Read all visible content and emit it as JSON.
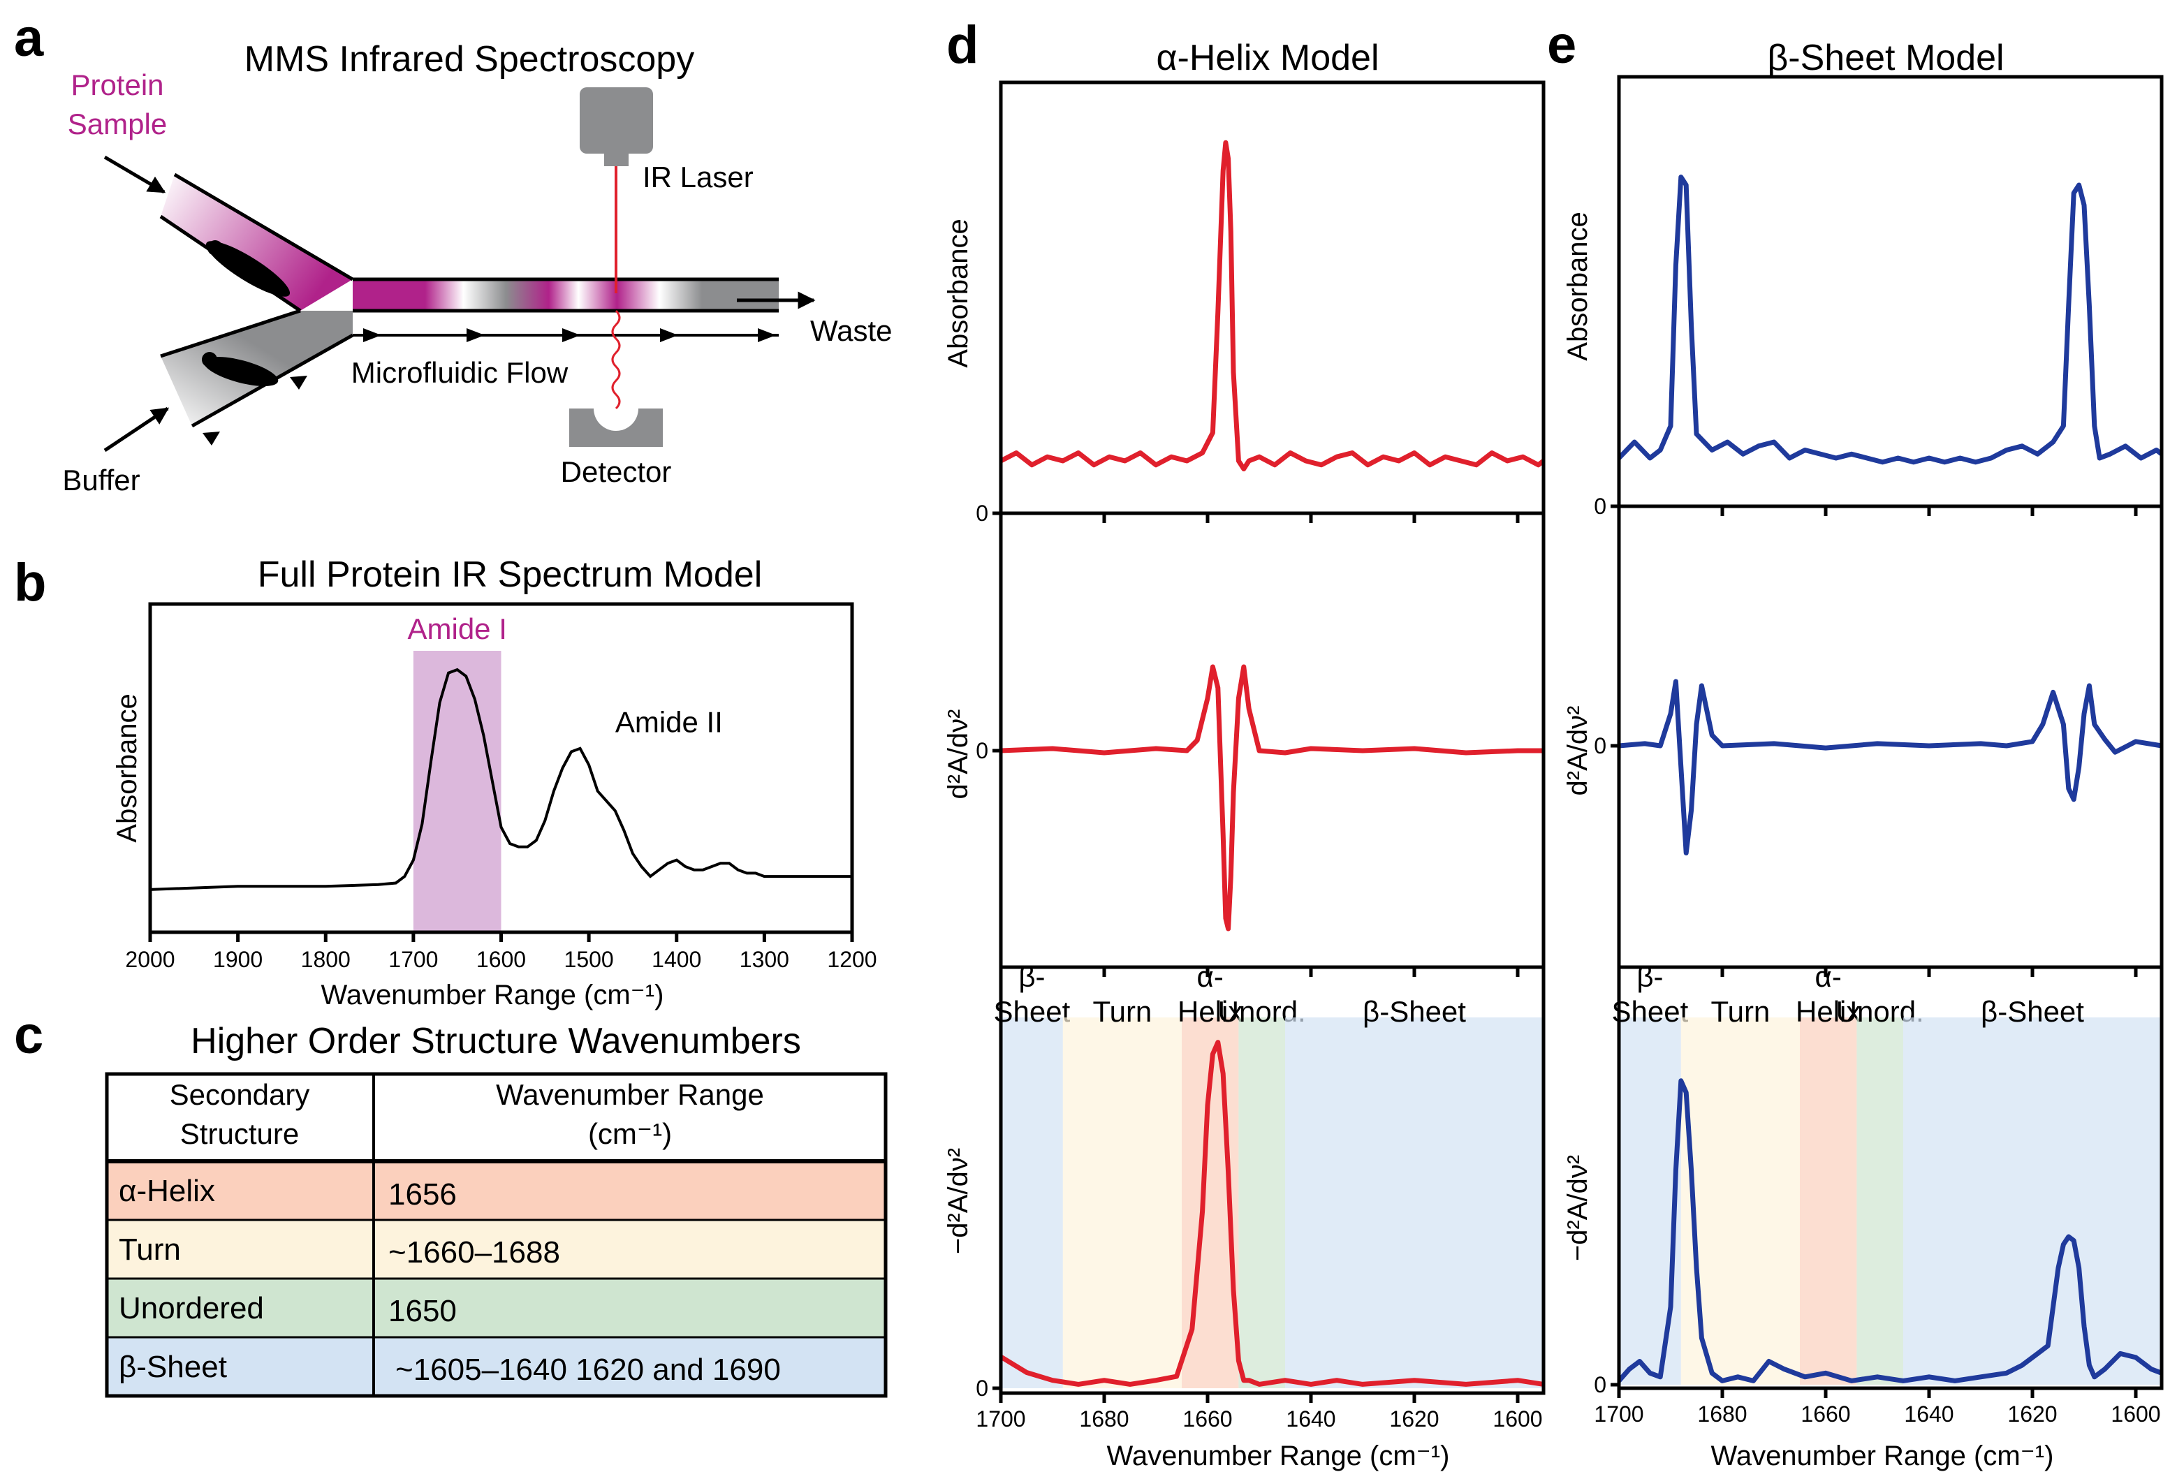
{
  "panels": {
    "a": {
      "letter": "a",
      "title": "MMS Infrared Spectroscopy",
      "protein_sample_1": "Protein",
      "protein_sample_2": "Sample",
      "buffer": "Buffer",
      "ir_laser": "IR Laser",
      "waste": "Waste",
      "flow": "Microfluidic Flow",
      "detector": "Detector"
    },
    "b": {
      "letter": "b"
    },
    "c": {
      "letter": "c"
    },
    "d": {
      "letter": "d"
    },
    "e": {
      "letter": "e"
    }
  },
  "colors": {
    "magenta": "#b0228a",
    "red": "#e0202c",
    "blue": "#1f3a9c",
    "gray": "#8c8d8f",
    "helix_bg": "#fbd0bd",
    "turn_bg": "#fdf3dd",
    "unordered_bg": "#cfe5d0",
    "sheet_bg": "#d3e3f3",
    "amide_band": "#dcb8dc"
  },
  "table": {
    "title": "Higher Order Structure Wavenumbers",
    "header_col1_line1": "Secondary",
    "header_col1_line2": "Structure",
    "header_col2_line1": "Wavenumber Range",
    "header_col2_line2": "(cm⁻¹)",
    "rows": [
      {
        "structure": "α-Helix",
        "range": "1656",
        "color": "#fbd0bd"
      },
      {
        "structure": "Turn",
        "range": "~1660–1688",
        "color": "#fdf3dd"
      },
      {
        "structure": "Unordered",
        "range": "1650",
        "color": "#cfe5d0"
      },
      {
        "structure": "β-Sheet",
        "range": "~1605–1640 1620 and 1690",
        "color": "#d3e3f3"
      }
    ]
  },
  "chart_data": [
    {
      "id": "b",
      "type": "line",
      "title": "Full Protein IR Spectrum Model",
      "xlabel": "Wavenumber Range (cm⁻¹)",
      "ylabel": "Absorbance",
      "xlim": [
        2000,
        1200
      ],
      "ylim": [
        0,
        1
      ],
      "xticks": [
        2000,
        1900,
        1800,
        1700,
        1600,
        1500,
        1400,
        1300,
        1200
      ],
      "band": {
        "label": "Amide I",
        "from": 1700,
        "to": 1600
      },
      "annotations": [
        {
          "text": "Amide II",
          "x": 1470,
          "y": 0.61
        }
      ],
      "series": [
        {
          "color": "#000000",
          "x": [
            2000,
            1900,
            1800,
            1740,
            1720,
            1710,
            1700,
            1690,
            1680,
            1670,
            1660,
            1650,
            1640,
            1630,
            1620,
            1610,
            1600,
            1590,
            1580,
            1570,
            1560,
            1550,
            1540,
            1530,
            1520,
            1510,
            1500,
            1490,
            1480,
            1470,
            1460,
            1450,
            1440,
            1430,
            1420,
            1410,
            1400,
            1390,
            1380,
            1370,
            1360,
            1350,
            1340,
            1330,
            1320,
            1310,
            1300,
            1290,
            1280,
            1270,
            1250,
            1200
          ],
          "y": [
            0.13,
            0.14,
            0.14,
            0.145,
            0.15,
            0.17,
            0.22,
            0.33,
            0.52,
            0.7,
            0.79,
            0.8,
            0.78,
            0.71,
            0.6,
            0.46,
            0.32,
            0.27,
            0.26,
            0.26,
            0.28,
            0.34,
            0.43,
            0.5,
            0.55,
            0.56,
            0.51,
            0.43,
            0.4,
            0.37,
            0.31,
            0.24,
            0.2,
            0.17,
            0.19,
            0.21,
            0.22,
            0.2,
            0.19,
            0.19,
            0.2,
            0.21,
            0.21,
            0.19,
            0.18,
            0.18,
            0.17,
            0.17,
            0.17,
            0.17,
            0.17,
            0.17
          ]
        }
      ]
    },
    {
      "id": "d",
      "type": "line",
      "title": "α-Helix Model",
      "xlabel": "Wavenumber Range (cm⁻¹)",
      "xlim": [
        1700,
        1595
      ],
      "xticks": [
        1700,
        1680,
        1660,
        1640,
        1620,
        1600
      ],
      "subplots": [
        {
          "ylabel": "Absorbance",
          "zero_label": "0",
          "ylim": [
            0,
            1
          ],
          "series": [
            {
              "color": "#e0202c",
              "x": [
                1700,
                1697,
                1694,
                1691,
                1688,
                1685,
                1682,
                1679,
                1676,
                1673,
                1670,
                1667,
                1664,
                1661,
                1659,
                1658,
                1657,
                1656.5,
                1656,
                1655.5,
                1655,
                1654,
                1653,
                1652,
                1650,
                1647,
                1644,
                1641,
                1638,
                1635,
                1632,
                1629,
                1626,
                1623,
                1620,
                1617,
                1614,
                1611,
                1608,
                1605,
                1602,
                1599,
                1596,
                1595
              ],
              "y": [
                0.13,
                0.15,
                0.12,
                0.14,
                0.13,
                0.15,
                0.12,
                0.14,
                0.13,
                0.15,
                0.12,
                0.14,
                0.13,
                0.15,
                0.2,
                0.5,
                0.85,
                0.92,
                0.88,
                0.7,
                0.35,
                0.13,
                0.11,
                0.13,
                0.14,
                0.12,
                0.15,
                0.13,
                0.12,
                0.14,
                0.15,
                0.12,
                0.14,
                0.13,
                0.15,
                0.12,
                0.14,
                0.13,
                0.12,
                0.15,
                0.13,
                0.14,
                0.12,
                0.13
              ]
            }
          ]
        },
        {
          "ylabel": "d²A/dν²",
          "zero_label": "0",
          "ylim": [
            -1,
            1
          ],
          "series": [
            {
              "color": "#e0202c",
              "x": [
                1700,
                1690,
                1680,
                1670,
                1664,
                1662,
                1660,
                1659,
                1658,
                1657,
                1656.5,
                1656,
                1655.5,
                1655,
                1654,
                1653,
                1652,
                1650,
                1645,
                1640,
                1630,
                1620,
                1610,
                1600,
                1595
              ],
              "y": [
                0,
                0.01,
                -0.01,
                0.01,
                0,
                0.05,
                0.25,
                0.4,
                0.3,
                -0.4,
                -0.8,
                -0.85,
                -0.6,
                -0.2,
                0.25,
                0.4,
                0.2,
                0,
                -0.01,
                0.01,
                0,
                0.01,
                -0.01,
                0,
                0
              ]
            }
          ]
        },
        {
          "ylabel": "−d²A/dν²",
          "zero_label": "0",
          "ylim": [
            0,
            1
          ],
          "regions": [
            {
              "label1": "β-",
              "label2": "Sheet",
              "from": 1700,
              "to": 1688,
              "color": "#d3e3f3"
            },
            {
              "label1": "",
              "label2": "Turn",
              "from": 1688,
              "to": 1665,
              "color": "#fdf3dd"
            },
            {
              "label1": "α-",
              "label2": "Helix",
              "from": 1665,
              "to": 1654,
              "color": "#fbd0bd"
            },
            {
              "label1": "",
              "label2": "Unord.",
              "from": 1654,
              "to": 1645,
              "color": "#cfe5d0"
            },
            {
              "label1": "",
              "label2": "β-Sheet",
              "from": 1645,
              "to": 1595,
              "color": "#d3e3f3"
            }
          ],
          "series": [
            {
              "color": "#e0202c",
              "x": [
                1700,
                1695,
                1690,
                1685,
                1680,
                1675,
                1670,
                1666,
                1663,
                1661,
                1660,
                1659,
                1658,
                1657,
                1656,
                1655,
                1654,
                1653,
                1652,
                1650,
                1645,
                1640,
                1635,
                1630,
                1620,
                1610,
                1600,
                1595
              ],
              "y": [
                0.08,
                0.04,
                0.02,
                0.01,
                0.02,
                0.01,
                0.02,
                0.03,
                0.15,
                0.45,
                0.72,
                0.85,
                0.88,
                0.8,
                0.55,
                0.25,
                0.07,
                0.02,
                0.02,
                0.01,
                0.02,
                0.01,
                0.02,
                0.01,
                0.02,
                0.01,
                0.02,
                0.01
              ]
            }
          ]
        }
      ]
    },
    {
      "id": "e",
      "type": "line",
      "title": "β-Sheet Model",
      "xlabel": "Wavenumber Range (cm⁻¹)",
      "xlim": [
        1700,
        1595
      ],
      "xticks": [
        1700,
        1680,
        1660,
        1640,
        1620,
        1600
      ],
      "subplots": [
        {
          "ylabel": "Absorbance",
          "zero_label": "0",
          "ylim": [
            0,
            1
          ],
          "series": [
            {
              "color": "#1f3a9c",
              "x": [
                1700,
                1697,
                1694,
                1692,
                1690,
                1689,
                1688,
                1687,
                1686,
                1685,
                1682,
                1679,
                1676,
                1673,
                1670,
                1667,
                1664,
                1661,
                1658,
                1655,
                1652,
                1649,
                1646,
                1643,
                1640,
                1637,
                1634,
                1631,
                1628,
                1625,
                1622,
                1619,
                1616,
                1614,
                1613,
                1612,
                1611,
                1610,
                1609,
                1608,
                1607,
                1605,
                1602,
                1599,
                1596,
                1595
              ],
              "y": [
                0.12,
                0.16,
                0.12,
                0.14,
                0.2,
                0.6,
                0.82,
                0.8,
                0.45,
                0.18,
                0.14,
                0.16,
                0.13,
                0.15,
                0.16,
                0.12,
                0.14,
                0.13,
                0.12,
                0.13,
                0.12,
                0.11,
                0.12,
                0.11,
                0.12,
                0.11,
                0.12,
                0.11,
                0.12,
                0.14,
                0.15,
                0.13,
                0.16,
                0.2,
                0.5,
                0.78,
                0.8,
                0.75,
                0.5,
                0.2,
                0.12,
                0.13,
                0.15,
                0.12,
                0.14,
                0.13
              ]
            }
          ]
        },
        {
          "ylabel": "d²A/dν²",
          "zero_label": "0",
          "ylim": [
            -1,
            1
          ],
          "series": [
            {
              "color": "#1f3a9c",
              "x": [
                1700,
                1695,
                1692,
                1690,
                1689,
                1688,
                1687,
                1686,
                1685,
                1684,
                1682,
                1680,
                1670,
                1660,
                1650,
                1640,
                1630,
                1625,
                1620,
                1618,
                1616,
                1614,
                1613,
                1612,
                1611,
                1610,
                1609,
                1608,
                1606,
                1604,
                1600,
                1595
              ],
              "y": [
                0,
                0.01,
                0,
                0.15,
                0.3,
                -0.1,
                -0.5,
                -0.3,
                0.1,
                0.28,
                0.05,
                0,
                0.01,
                -0.01,
                0.01,
                0,
                0.01,
                0,
                0.02,
                0.1,
                0.25,
                0.1,
                -0.2,
                -0.25,
                -0.1,
                0.15,
                0.28,
                0.1,
                0.03,
                -0.03,
                0.02,
                0
              ]
            }
          ]
        },
        {
          "ylabel": "−d²A/dν²",
          "zero_label": "0",
          "ylim": [
            0,
            1
          ],
          "regions": [
            {
              "label1": "β-",
              "label2": "Sheet",
              "from": 1700,
              "to": 1688,
              "color": "#d3e3f3"
            },
            {
              "label1": "",
              "label2": "Turn",
              "from": 1688,
              "to": 1665,
              "color": "#fdf3dd"
            },
            {
              "label1": "α-",
              "label2": "Helix",
              "from": 1665,
              "to": 1654,
              "color": "#fbd0bd"
            },
            {
              "label1": "",
              "label2": "Unord.",
              "from": 1654,
              "to": 1645,
              "color": "#cfe5d0"
            },
            {
              "label1": "",
              "label2": "β-Sheet",
              "from": 1645,
              "to": 1595,
              "color": "#d3e3f3"
            }
          ],
          "series": [
            {
              "color": "#1f3a9c",
              "x": [
                1700,
                1698,
                1696,
                1694,
                1692,
                1690,
                1689,
                1688,
                1687,
                1686,
                1685,
                1684,
                1682,
                1680,
                1677,
                1674,
                1671,
                1668,
                1664,
                1660,
                1655,
                1650,
                1645,
                1640,
                1635,
                1630,
                1625,
                1622,
                1619,
                1617,
                1616,
                1615,
                1614,
                1613,
                1612,
                1611,
                1610,
                1609,
                1608,
                1606,
                1603,
                1600,
                1597,
                1595
              ],
              "y": [
                0.01,
                0.04,
                0.06,
                0.03,
                0.02,
                0.2,
                0.55,
                0.78,
                0.75,
                0.55,
                0.3,
                0.12,
                0.03,
                0.01,
                0.02,
                0.01,
                0.06,
                0.04,
                0.02,
                0.03,
                0.01,
                0.02,
                0.01,
                0.02,
                0.01,
                0.02,
                0.03,
                0.05,
                0.08,
                0.1,
                0.2,
                0.3,
                0.36,
                0.38,
                0.37,
                0.3,
                0.15,
                0.05,
                0.02,
                0.04,
                0.08,
                0.07,
                0.04,
                0.03
              ]
            }
          ]
        }
      ]
    }
  ]
}
